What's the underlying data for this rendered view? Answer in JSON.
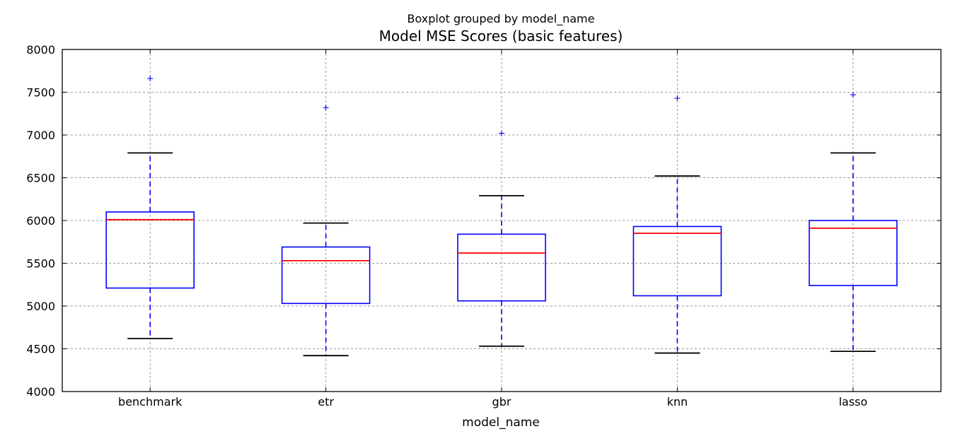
{
  "chart_data": {
    "type": "box",
    "suptitle": "Boxplot grouped by model_name",
    "title": "Model MSE Scores (basic features)",
    "xlabel": "model_name",
    "ylabel": "",
    "ylim": [
      4000,
      8000
    ],
    "yticks": [
      4000,
      4500,
      5000,
      5500,
      6000,
      6500,
      7000,
      7500,
      8000
    ],
    "grid": true,
    "categories": [
      "benchmark",
      "etr",
      "gbr",
      "knn",
      "lasso"
    ],
    "boxes": [
      {
        "name": "benchmark",
        "whisker_low": 4620,
        "q1": 5210,
        "median": 6010,
        "q3": 6100,
        "whisker_high": 6790,
        "fliers": [
          7660
        ]
      },
      {
        "name": "etr",
        "whisker_low": 4420,
        "q1": 5030,
        "median": 5530,
        "q3": 5690,
        "whisker_high": 5970,
        "fliers": [
          7320
        ]
      },
      {
        "name": "gbr",
        "whisker_low": 4530,
        "q1": 5060,
        "median": 5620,
        "q3": 5840,
        "whisker_high": 6290,
        "fliers": [
          7020
        ]
      },
      {
        "name": "knn",
        "whisker_low": 4450,
        "q1": 5120,
        "median": 5850,
        "q3": 5930,
        "whisker_high": 6520,
        "fliers": [
          7430
        ]
      },
      {
        "name": "lasso",
        "whisker_low": 4470,
        "q1": 5240,
        "median": 5910,
        "q3": 6000,
        "whisker_high": 6790,
        "fliers": [
          7470
        ]
      }
    ],
    "colors": {
      "box": "#0000ff",
      "whisker": "#0000ff",
      "cap": "#000000",
      "median": "#ff0000",
      "flier": "#0000ff",
      "grid": "#9a9a9a"
    }
  }
}
